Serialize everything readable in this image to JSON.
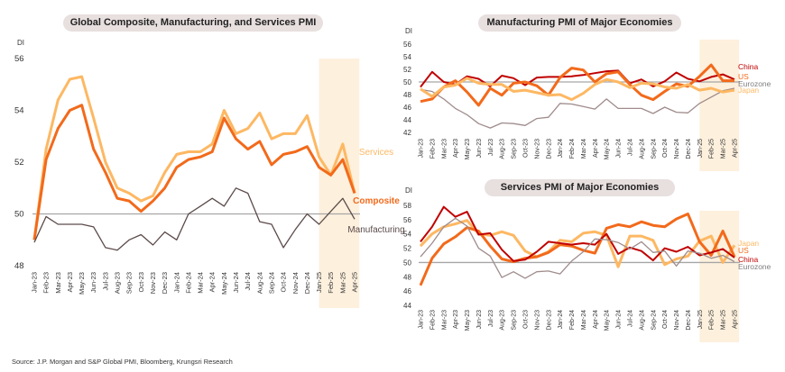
{
  "source": "Source: J.P. Morgan and S&P Global PMI, Bloomberg, Krungsri Research",
  "chart_data": [
    {
      "type": "line",
      "title": "Global Composite, Manufacturing, and Services PMI",
      "ylabel": "DI",
      "xlabel": "",
      "ylim": [
        48,
        56
      ],
      "yticks": [
        48,
        50,
        52,
        54,
        56
      ],
      "reference_line": 50,
      "highlight_range": [
        "Feb-25",
        "Apr-25"
      ],
      "x": [
        "Jan-23",
        "Feb-23",
        "Mar-23",
        "Apr-23",
        "May-23",
        "Jun-23",
        "Jul-23",
        "Aug-23",
        "Sep-23",
        "Oct-23",
        "Nov-23",
        "Dec-23",
        "Jan-24",
        "Feb-24",
        "Mar-24",
        "Apr-24",
        "May-24",
        "Jun-24",
        "Jul-24",
        "Aug-24",
        "Sep-24",
        "Oct-24",
        "Nov-24",
        "Dec-24",
        "Jan-25",
        "Feb-25",
        "Mar-25",
        "Apr-25"
      ],
      "series": [
        {
          "name": "Services",
          "color": "#fdb863",
          "values": [
            49.0,
            52.5,
            54.4,
            55.2,
            55.3,
            53.7,
            52.0,
            51.0,
            50.8,
            50.5,
            50.7,
            51.6,
            52.3,
            52.4,
            52.4,
            52.7,
            54.0,
            53.1,
            53.3,
            53.9,
            52.9,
            53.1,
            53.1,
            53.8,
            52.2,
            51.5,
            52.7,
            50.8
          ]
        },
        {
          "name": "Composite",
          "color": "#f26a1b",
          "values": [
            49.0,
            52.1,
            53.3,
            54.0,
            54.2,
            52.5,
            51.6,
            50.6,
            50.5,
            50.1,
            50.5,
            51.0,
            51.8,
            52.1,
            52.2,
            52.4,
            53.7,
            52.9,
            52.5,
            52.8,
            51.9,
            52.3,
            52.4,
            52.6,
            51.8,
            51.5,
            52.1,
            50.8
          ]
        },
        {
          "name": "Manufacturing",
          "color": "#5c4a4a",
          "values": [
            48.9,
            49.9,
            49.6,
            49.6,
            49.6,
            49.5,
            48.7,
            48.6,
            49.0,
            49.2,
            48.8,
            49.3,
            49.0,
            50.0,
            50.3,
            50.6,
            50.3,
            51.0,
            50.8,
            49.7,
            49.6,
            48.7,
            49.4,
            50.0,
            49.6,
            50.1,
            50.6,
            49.8
          ]
        }
      ],
      "legend": [
        "Services",
        "Composite",
        "Manufacturing"
      ]
    },
    {
      "type": "line",
      "title": "Manufacturing PMI of Major Economies",
      "ylabel": "DI",
      "ylim": [
        42,
        56
      ],
      "yticks": [
        42,
        44,
        46,
        48,
        50,
        52,
        54,
        56
      ],
      "reference_line": 50,
      "highlight_range": [
        "Feb-25",
        "Apr-25"
      ],
      "x": [
        "Jan-23",
        "Feb-23",
        "Mar-23",
        "Apr-23",
        "May-23",
        "Jun-23",
        "Jul-23",
        "Aug-23",
        "Sep-23",
        "Oct-23",
        "Nov-23",
        "Dec-23",
        "Jan-24",
        "Feb-24",
        "Mar-24",
        "Apr-24",
        "May-24",
        "Jun-24",
        "Jul-24",
        "Aug-24",
        "Sep-24",
        "Oct-24",
        "Nov-24",
        "Dec-24",
        "Jan-25",
        "Feb-25",
        "Mar-25",
        "Apr-25"
      ],
      "series": [
        {
          "name": "China",
          "color": "#c00000",
          "values": [
            49.2,
            51.6,
            50.0,
            49.6,
            50.9,
            50.5,
            49.3,
            51.0,
            50.6,
            49.5,
            50.7,
            50.8,
            50.8,
            50.9,
            51.1,
            51.4,
            51.7,
            51.8,
            49.8,
            50.4,
            49.3,
            50.1,
            51.5,
            50.5,
            50.1,
            50.8,
            51.2,
            50.4
          ]
        },
        {
          "name": "US",
          "color": "#f26a1b",
          "values": [
            46.9,
            47.3,
            49.2,
            50.2,
            48.4,
            46.3,
            49.0,
            47.9,
            49.8,
            50.0,
            49.4,
            47.9,
            50.7,
            52.2,
            51.9,
            50.0,
            51.3,
            51.6,
            49.6,
            47.9,
            47.2,
            48.5,
            49.7,
            49.3,
            50.9,
            52.7,
            50.2,
            50.2
          ]
        },
        {
          "name": "Eurozone",
          "color": "#a08c8c",
          "values": [
            48.8,
            48.5,
            47.3,
            45.8,
            44.8,
            43.4,
            42.7,
            43.5,
            43.4,
            43.1,
            44.2,
            44.4,
            46.6,
            46.5,
            46.1,
            45.7,
            47.3,
            45.8,
            45.8,
            45.8,
            45.0,
            46.0,
            45.2,
            45.1,
            46.6,
            47.6,
            48.6,
            49.0
          ]
        },
        {
          "name": "Japan",
          "color": "#fdb863",
          "values": [
            48.9,
            47.7,
            49.2,
            49.5,
            50.6,
            49.8,
            49.6,
            49.6,
            48.5,
            48.7,
            48.3,
            47.9,
            48.0,
            47.2,
            48.2,
            49.6,
            50.4,
            50.0,
            49.1,
            49.8,
            49.7,
            49.2,
            49.0,
            49.6,
            48.7,
            49.0,
            48.4,
            48.7
          ]
        }
      ],
      "legend": [
        "China",
        "US",
        "Eurozone",
        "Japan"
      ]
    },
    {
      "type": "line",
      "title": "Services PMI of Major Economies",
      "ylabel": "DI",
      "ylim": [
        44,
        58
      ],
      "yticks": [
        44,
        46,
        48,
        50,
        52,
        54,
        56,
        58
      ],
      "reference_line": 50,
      "highlight_range": [
        "Feb-25",
        "Apr-25"
      ],
      "x": [
        "Jan-23",
        "Feb-23",
        "Mar-23",
        "Apr-23",
        "May-23",
        "Jun-23",
        "Jul-23",
        "Aug-23",
        "Sep-23",
        "Oct-23",
        "Nov-23",
        "Dec-23",
        "Jan-24",
        "Feb-24",
        "Mar-24",
        "Apr-24",
        "May-24",
        "Jun-24",
        "Jul-24",
        "Aug-24",
        "Sep-24",
        "Oct-24",
        "Nov-24",
        "Dec-24",
        "Jan-25",
        "Feb-25",
        "Mar-25",
        "Apr-25"
      ],
      "series": [
        {
          "name": "Japan",
          "color": "#fdb863",
          "values": [
            52.3,
            54.0,
            55.0,
            55.4,
            55.9,
            54.0,
            53.8,
            54.3,
            53.8,
            51.6,
            50.8,
            51.5,
            53.1,
            52.9,
            54.1,
            54.3,
            53.8,
            49.4,
            53.7,
            53.7,
            53.1,
            49.7,
            50.5,
            50.9,
            53.0,
            53.7,
            50.0,
            52.4
          ]
        },
        {
          "name": "US",
          "color": "#f26a1b",
          "values": [
            46.8,
            50.6,
            52.6,
            53.6,
            54.9,
            54.4,
            52.3,
            50.5,
            50.1,
            50.6,
            50.8,
            51.4,
            52.5,
            52.3,
            51.7,
            51.3,
            54.8,
            55.3,
            55.0,
            55.7,
            55.2,
            55.0,
            56.1,
            56.8,
            52.9,
            51.0,
            54.4,
            50.8
          ]
        },
        {
          "name": "China",
          "color": "#c00000",
          "values": [
            52.9,
            55.0,
            57.8,
            56.4,
            57.1,
            53.9,
            54.1,
            51.8,
            50.2,
            50.4,
            51.5,
            52.9,
            52.7,
            52.5,
            52.7,
            52.5,
            54.0,
            51.2,
            52.1,
            51.6,
            50.3,
            52.0,
            51.5,
            52.2,
            51.0,
            51.4,
            51.9,
            50.7
          ]
        },
        {
          "name": "Eurozone",
          "color": "#a08c8c",
          "values": [
            50.8,
            52.7,
            55.0,
            56.2,
            55.1,
            52.0,
            50.9,
            47.9,
            48.7,
            47.8,
            48.7,
            48.8,
            48.4,
            50.2,
            51.5,
            53.3,
            53.2,
            52.8,
            51.9,
            52.9,
            51.4,
            51.6,
            49.5,
            51.6,
            51.3,
            50.6,
            51.0,
            50.1
          ]
        }
      ],
      "legend": [
        "Japan",
        "US",
        "China",
        "Eurozone"
      ]
    }
  ]
}
